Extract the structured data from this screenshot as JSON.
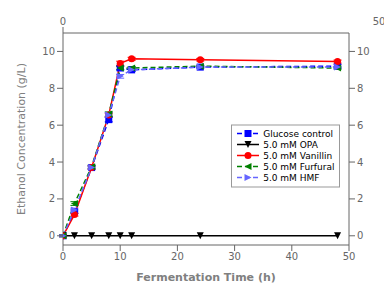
{
  "chart_data": {
    "type": "line",
    "xlabel": "Fermentation Time (h)",
    "ylabel": "Ethanol Concentration (g/L)",
    "x": [
      0,
      2,
      5,
      8,
      10,
      12,
      24,
      48
    ],
    "xlim": [
      0,
      50
    ],
    "xticks": [
      0,
      10,
      20,
      30,
      40,
      50
    ],
    "ylim": [
      -0.5,
      11
    ],
    "yticks": [
      0,
      2,
      4,
      6,
      8,
      10
    ],
    "legend": "right",
    "series": [
      {
        "name": "Glucose control",
        "color": "blue",
        "marker": "square",
        "line_style": "dashed",
        "values": [
          0.0,
          1.3,
          3.7,
          6.3,
          9.1,
          9.0,
          9.15,
          9.2
        ],
        "errors": [
          0.05,
          0.1,
          0.08,
          0.12,
          0.1,
          0.08,
          0.05,
          0.1
        ]
      },
      {
        "name": "5.0 mM OPA",
        "color": "black",
        "marker": "triangle_down",
        "line_style": "solid",
        "values": [
          0.0,
          0.0,
          0.0,
          0.0,
          0.0,
          0.0,
          0.0,
          0.0
        ],
        "errors": [
          0.0,
          0.0,
          0.0,
          0.0,
          0.0,
          0.0,
          0.0,
          0.0
        ]
      },
      {
        "name": "5.0 mM Vanillin",
        "color": "red",
        "marker": "circle",
        "line_style": "solid",
        "values": [
          0.0,
          1.15,
          3.7,
          6.55,
          9.35,
          9.6,
          9.55,
          9.45
        ],
        "errors": [
          0.05,
          0.08,
          0.09,
          0.1,
          0.12,
          0.08,
          0.07,
          0.08
        ]
      },
      {
        "name": "5.0 mM Furfural",
        "color": "green",
        "marker": "triangle_left",
        "line_style": "dashed",
        "values": [
          0.0,
          1.75,
          3.75,
          6.6,
          9.1,
          9.1,
          9.2,
          9.1
        ],
        "errors": [
          0.05,
          0.1,
          0.08,
          0.12,
          0.1,
          0.08,
          0.05,
          0.06
        ]
      },
      {
        "name": "5.0 mM HMF",
        "color": "#6666ff",
        "marker": "triangle_right",
        "line_style": "dashed",
        "values": [
          0.0,
          1.4,
          3.7,
          6.55,
          8.65,
          9.0,
          9.15,
          9.15
        ],
        "errors": [
          0.05,
          0.1,
          0.08,
          0.12,
          0.1,
          0.08,
          0.05,
          0.06
        ]
      }
    ]
  }
}
